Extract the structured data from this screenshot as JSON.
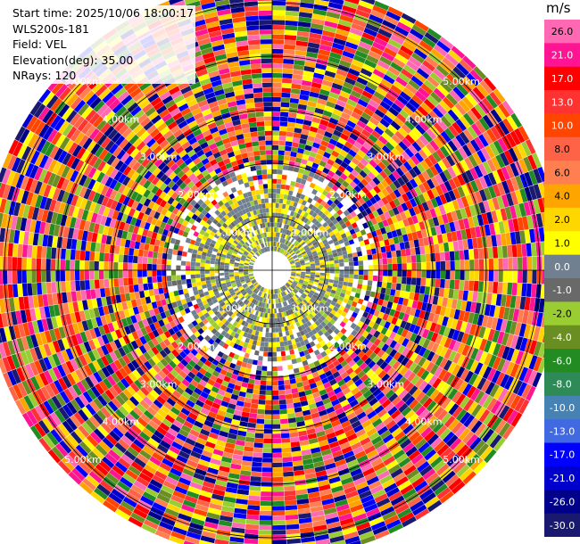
{
  "info": {
    "start_time": "Start time: 2025/10/06 18:00:17",
    "station": "WLS200s-181",
    "field": "Field: VEL",
    "elevation": "Elevation(deg): 35.00",
    "nrays": "NRays: 120"
  },
  "chart_data": {
    "type": "ppi",
    "field": "VEL",
    "unit": "m/s",
    "n_rays": 120,
    "range_rings_km": [
      1.0,
      2.0,
      3.0,
      4.0,
      5.0
    ],
    "ring_label_text": [
      "1.00km",
      "2.00km",
      "3.00km",
      "4.00km",
      "5.00km"
    ],
    "max_range_km": 5.4,
    "colorbar": {
      "tick_labels": [
        "26.0",
        "21.0",
        "17.0",
        "13.0",
        "10.0",
        "8.0",
        "6.0",
        "4.0",
        "2.0",
        "1.0",
        "0.0",
        "-1.0",
        "-2.0",
        "-4.0",
        "-6.0",
        "-8.0",
        "-10.0",
        "-13.0",
        "-17.0",
        "-21.0",
        "-26.0",
        "-30.0"
      ],
      "colors": [
        "#ff69b4",
        "#ff1493",
        "#ff0000",
        "#ff3232",
        "#ff4500",
        "#ff6347",
        "#ff7f50",
        "#ffa500",
        "#ffd700",
        "#ffff00",
        "#708090",
        "#696969",
        "#9acd32",
        "#6b8e23",
        "#228b22",
        "#2e8b57",
        "#4682b4",
        "#4169e1",
        "#0000ff",
        "#0000cd",
        "#00008b",
        "#191970"
      ]
    }
  }
}
